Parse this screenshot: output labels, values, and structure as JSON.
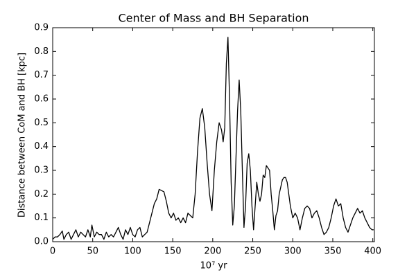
{
  "chart_data": {
    "type": "line",
    "title": "Center of Mass and BH Separation",
    "xlabel": "10⁷ yr",
    "ylabel": "Distance between CoM and BH [kpc]",
    "x": [
      0,
      3,
      6,
      9,
      12,
      14,
      17,
      20,
      23,
      26,
      29,
      32,
      35,
      38,
      41,
      44,
      47,
      49,
      52,
      55,
      58,
      61,
      64,
      67,
      70,
      73,
      76,
      79,
      82,
      85,
      88,
      91,
      94,
      97,
      100,
      103,
      106,
      109,
      112,
      115,
      118,
      121,
      124,
      127,
      130,
      133,
      136,
      139,
      142,
      145,
      148,
      151,
      154,
      157,
      160,
      163,
      166,
      169,
      172,
      175,
      178,
      181,
      184,
      187,
      190,
      193,
      196,
      199,
      202,
      205,
      208,
      211,
      213,
      215,
      217,
      219,
      221,
      223,
      225,
      227,
      229,
      231,
      233,
      235,
      237,
      239,
      241,
      243,
      245,
      247,
      249,
      251,
      253,
      255,
      257,
      259,
      261,
      263,
      265,
      267,
      269,
      271,
      273,
      275,
      277,
      279,
      281,
      283,
      285,
      287,
      289,
      291,
      293,
      295,
      297,
      300,
      303,
      306,
      309,
      312,
      315,
      318,
      321,
      324,
      327,
      330,
      333,
      336,
      339,
      342,
      345,
      348,
      351,
      354,
      357,
      360,
      363,
      366,
      369,
      372,
      375,
      378,
      381,
      384,
      387,
      390,
      393,
      396,
      399,
      401
    ],
    "series": [
      {
        "color": "#000000",
        "values": [
          0.01,
          0.02,
          0.02,
          0.03,
          0.045,
          0.01,
          0.03,
          0.04,
          0.01,
          0.03,
          0.05,
          0.02,
          0.04,
          0.03,
          0.02,
          0.05,
          0.02,
          0.07,
          0.02,
          0.04,
          0.03,
          0.03,
          0.01,
          0.04,
          0.02,
          0.03,
          0.02,
          0.04,
          0.06,
          0.03,
          0.01,
          0.05,
          0.03,
          0.06,
          0.03,
          0.02,
          0.05,
          0.06,
          0.02,
          0.03,
          0.04,
          0.08,
          0.12,
          0.16,
          0.18,
          0.22,
          0.215,
          0.21,
          0.17,
          0.12,
          0.1,
          0.12,
          0.09,
          0.1,
          0.08,
          0.1,
          0.08,
          0.12,
          0.11,
          0.1,
          0.2,
          0.38,
          0.52,
          0.56,
          0.48,
          0.33,
          0.2,
          0.13,
          0.3,
          0.42,
          0.5,
          0.47,
          0.42,
          0.48,
          0.75,
          0.86,
          0.6,
          0.25,
          0.07,
          0.15,
          0.35,
          0.55,
          0.68,
          0.55,
          0.3,
          0.06,
          0.15,
          0.33,
          0.37,
          0.3,
          0.15,
          0.05,
          0.15,
          0.25,
          0.2,
          0.17,
          0.2,
          0.28,
          0.27,
          0.32,
          0.31,
          0.3,
          0.2,
          0.13,
          0.05,
          0.11,
          0.13,
          0.2,
          0.23,
          0.26,
          0.27,
          0.27,
          0.25,
          0.2,
          0.15,
          0.1,
          0.12,
          0.1,
          0.05,
          0.1,
          0.14,
          0.15,
          0.14,
          0.1,
          0.12,
          0.13,
          0.1,
          0.06,
          0.03,
          0.04,
          0.06,
          0.1,
          0.15,
          0.18,
          0.15,
          0.16,
          0.1,
          0.06,
          0.04,
          0.07,
          0.1,
          0.12,
          0.14,
          0.12,
          0.13,
          0.1,
          0.08,
          0.06,
          0.05,
          0.05
        ]
      }
    ],
    "xlim": [
      0,
      402
    ],
    "ylim": [
      0,
      0.9
    ],
    "xticks": [
      0,
      50,
      100,
      150,
      200,
      250,
      300,
      350,
      400
    ],
    "yticks": [
      {
        "value": 0,
        "label": "0.0"
      },
      0.1,
      0.2,
      0.3,
      0.4,
      0.5,
      0.6,
      0.7,
      0.8,
      0.9
    ],
    "grid": false
  }
}
